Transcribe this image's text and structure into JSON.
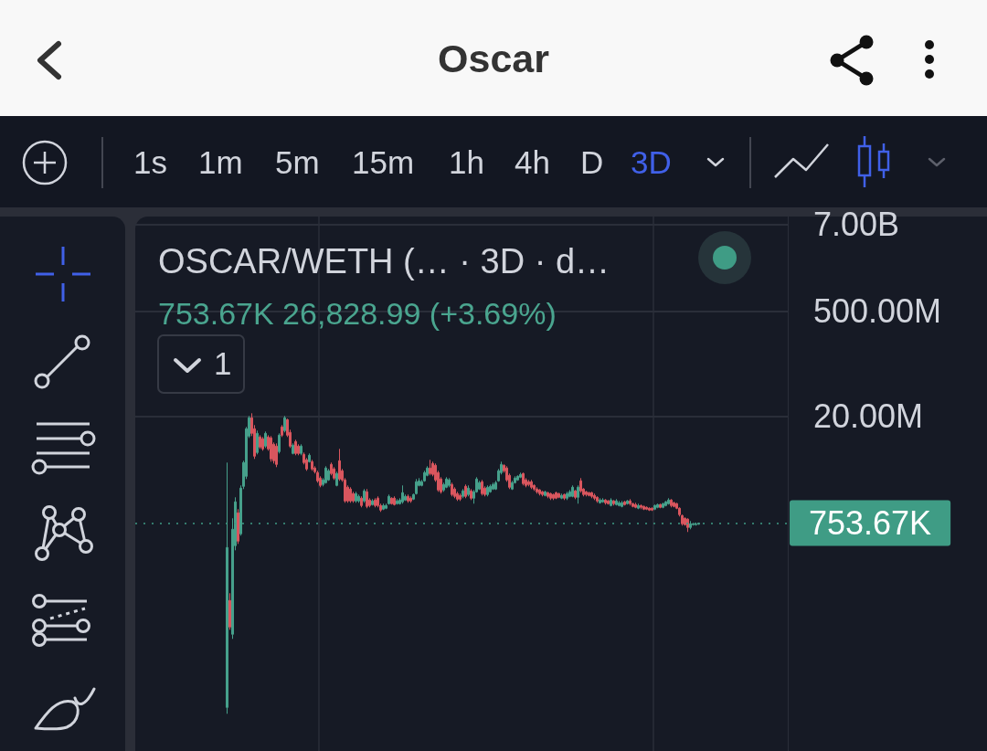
{
  "chart_data": {
    "type": "candlestick",
    "title": "OSCAR/WETH (… · 3D · d…",
    "subtitle": "753.67K 26,828.99 (+3.69%)",
    "annotations": [
      "Oscar",
      "1s",
      "1m",
      "5m",
      "15m",
      "1h",
      "4h",
      "D",
      "3D",
      "1"
    ],
    "categories": [
      null,
      null,
      null,
      null,
      null,
      null,
      null,
      null,
      null,
      null,
      null,
      null,
      null,
      null,
      null,
      null,
      null,
      null,
      null,
      null,
      null,
      null,
      null,
      null,
      null,
      null,
      null,
      null,
      null,
      null,
      null,
      null,
      null,
      null,
      null,
      null,
      null,
      null,
      null,
      null,
      null,
      null,
      null,
      null,
      null,
      null,
      null,
      null,
      null,
      null,
      null,
      null,
      null,
      null,
      null,
      null,
      null,
      null,
      null,
      null,
      null,
      null,
      null,
      null,
      null,
      null,
      null,
      null,
      null,
      null,
      null,
      null,
      null,
      null,
      null,
      null,
      null,
      null,
      null,
      null,
      null,
      null,
      null,
      null,
      null,
      null,
      null,
      null,
      null,
      null,
      null,
      null,
      null,
      null,
      null,
      null,
      null,
      null,
      null,
      null,
      null,
      null,
      null,
      null,
      null,
      null,
      null,
      null,
      null,
      null,
      null,
      null,
      null,
      null,
      null,
      null,
      null,
      null,
      null,
      null,
      null,
      null,
      null,
      null,
      null,
      null,
      null,
      null,
      null,
      null,
      null,
      null,
      null,
      null,
      null,
      null,
      null,
      null,
      null,
      null,
      null,
      null,
      null,
      null,
      null,
      null,
      null,
      null,
      null,
      null,
      null,
      null,
      null,
      null,
      null,
      null,
      null,
      null,
      null,
      null,
      null,
      null,
      null,
      null,
      null,
      null,
      null,
      null,
      null,
      null,
      null,
      null,
      null,
      null,
      null,
      null,
      null,
      null,
      null,
      null,
      null,
      null,
      null,
      null,
      null,
      null,
      null,
      null,
      null,
      null,
      null,
      null,
      null,
      null,
      null,
      null,
      null,
      null,
      null,
      null,
      null,
      null,
      null,
      null,
      null,
      null,
      null,
      null,
      null,
      null,
      null,
      null,
      null,
      null,
      null,
      null,
      null,
      null,
      null,
      null,
      null,
      null,
      null,
      null,
      null,
      null,
      null,
      null,
      null,
      null,
      null,
      null,
      null,
      null,
      null,
      null,
      null,
      null
    ],
    "ohlc": [
      null,
      null,
      null,
      null,
      null,
      null,
      null,
      null,
      null,
      null,
      null,
      null,
      null,
      null,
      null,
      null,
      null,
      null,
      null,
      null,
      null,
      null,
      null,
      null,
      null,
      null,
      null,
      null,
      null,
      null,
      null,
      null,
      null,
      [
        2660,
        4802000.0,
        2190,
        356000
      ],
      [
        70300,
        87900,
        28700,
        31200
      ],
      [
        25000,
        872000,
        21700,
        623000
      ],
      [
        377000,
        1659000.0,
        327000,
        1442000.0
      ],
      [
        1031000.0,
        1153000.0,
        398000,
        433000
      ],
      [
        542000,
        2386000.0,
        512000,
        2194000.0
      ],
      [
        2320000.0,
        5078000.0,
        2134000.0,
        4802000.0
      ],
      [
        3156000.0,
        14300000.0,
        2902000.0,
        13520000.0
      ],
      [
        10810000.0,
        20000000.0,
        10220000.0,
        18910000.0
      ],
      [
        18910000.0,
        21750000.0,
        10810000.0,
        11750000.0
      ],
      [
        13520000.0,
        15120000.0,
        5370000.0,
        5840000.0
      ],
      [
        6532000.0,
        12780000.0,
        6177000.0,
        11750000.0
      ],
      [
        10510000.0,
        11110000.0,
        7306000.0,
        7726000.0
      ],
      [
        9937000.0,
        10510000.0,
        6908000.0,
        7306000.0
      ],
      [
        7945000.0,
        12430000.0,
        7513000.0,
        11750000.0
      ],
      [
        10510000.0,
        11110000.0,
        6908000.0,
        7306000.0
      ],
      [
        10220000.0,
        10810000.0,
        4938000.0,
        5370000.0
      ],
      [
        8403000.0,
        8885000.0,
        4669000.0,
        5078000.0
      ],
      [
        7945000.0,
        8641000.0,
        4175000.0,
        4540000.0
      ],
      [
        6718000.0,
        11750000.0,
        6352000.0,
        11110000.0
      ],
      [
        14300000.0,
        15120000.0,
        10510000.0,
        11110000.0
      ],
      [
        12780000.0,
        20000000.0,
        12090000.0,
        18910000.0
      ],
      [
        17880000.0,
        18390000.0,
        10510000.0,
        11110000.0
      ],
      [
        12090000.0,
        13150000.0,
        7513000.0,
        7945000.0
      ],
      [
        6352000.0,
        8641000.0,
        6177000.0,
        8171000.0
      ],
      [
        9137000.0,
        9663000.0,
        6006000.0,
        6352000.0
      ],
      [
        7945000.0,
        8403000.0,
        6006000.0,
        6352000.0
      ],
      [
        6352000.0,
        8403000.0,
        6006000.0,
        7945000.0
      ],
      [
        6177000.0,
        6532000.0,
        4540000.0,
        4802000.0
      ],
      [
        5222000.0,
        5523000.0,
        3733000.0,
        3948000.0
      ],
      [
        4938000.0,
        6352000.0,
        4802000.0,
        6006000.0
      ],
      [
        4938000.0,
        5222000.0,
        3733000.0,
        3948000.0
      ],
      [
        4060000.0,
        4293000.0,
        3432000.0,
        3630000.0
      ],
      [
        3530000.0,
        3733000.0,
        2595000.0,
        2744000.0
      ],
      [
        2984000.0,
        3156000.0,
        2256000.0,
        2386000.0
      ],
      [
        2454000.0,
        2984000.0,
        2320000.0,
        2822000.0
      ],
      [
        2595000.0,
        4293000.0,
        2523000.0,
        4060000.0
      ],
      [
        2822000.0,
        3948000.0,
        2744000.0,
        3733000.0
      ],
      [
        4540000.0,
        4802000.0,
        3246000.0,
        3432000.0
      ],
      [
        3948000.0,
        4175000.0,
        2822000.0,
        2984000.0
      ],
      [
        2386000.0,
        3630000.0,
        2320000.0,
        3432000.0
      ],
      [
        5078000.0,
        7306000.0,
        2744000.0,
        2902000.0
      ],
      [
        3733000.0,
        3948000.0,
        2668000.0,
        2822000.0
      ],
      [
        2822000.0,
        2984000.0,
        1402000.0,
        1483000.0
      ],
      [
        2256000.0,
        2386000.0,
        1402000.0,
        1483000.0
      ],
      [
        2134000.0,
        2256000.0,
        1402000.0,
        1483000.0
      ],
      [
        1855000.0,
        1962000.0,
        1402000.0,
        1483000.0
      ],
      [
        1483000.0,
        1962000.0,
        1402000.0,
        1855000.0
      ],
      [
        1483000.0,
        1804000.0,
        1402000.0,
        1706000.0
      ],
      [
        1613000.0,
        1706000.0,
        1219000.0,
        1289000.0
      ],
      [
        1483000.0,
        2134000.0,
        1402000.0,
        2017000.0
      ],
      [
        1962000.0,
        2134000.0,
        1186000.0,
        1254000.0
      ],
      [
        1525000.0,
        1613000.0,
        1219000.0,
        1289000.0
      ],
      [
        1326000.0,
        1568000.0,
        1289000.0,
        1483000.0
      ],
      [
        1525000.0,
        1613000.0,
        1219000.0,
        1289000.0
      ],
      [
        1613000.0,
        1706000.0,
        1219000.0,
        1289000.0
      ],
      [
        1289000.0,
        1364000.0,
        1060000.0,
        1121000.0
      ],
      [
        1153000.0,
        1364000.0,
        1121000.0,
        1289000.0
      ],
      [
        1186000.0,
        1364000.0,
        1153000.0,
        1289000.0
      ],
      [
        1364000.0,
        1804000.0,
        1326000.0,
        1706000.0
      ],
      [
        1613000.0,
        1659000.0,
        1326000.0,
        1364000.0
      ],
      [
        1613000.0,
        1706000.0,
        1289000.0,
        1326000.0
      ],
      [
        1364000.0,
        1568000.0,
        1326000.0,
        1483000.0
      ],
      [
        1364000.0,
        1613000.0,
        1326000.0,
        1525000.0
      ],
      [
        1442000.0,
        2386000.0,
        1364000.0,
        1908000.0
      ],
      [
        1525000.0,
        1804000.0,
        1483000.0,
        1706000.0
      ],
      [
        1706000.0,
        1804000.0,
        1402000.0,
        1483000.0
      ],
      [
        1613000.0,
        1706000.0,
        1402000.0,
        1483000.0
      ],
      [
        1568000.0,
        1855000.0,
        1525000.0,
        1804000.0
      ],
      [
        1855000.0,
        2902000.0,
        1804000.0,
        2668000.0
      ],
      [
        2386000.0,
        2984000.0,
        2320000.0,
        2744000.0
      ],
      [
        2386000.0,
        2822000.0,
        2320000.0,
        2668000.0
      ],
      [
        2744000.0,
        3733000.0,
        2668000.0,
        3530000.0
      ],
      [
        3246000.0,
        4293000.0,
        3156000.0,
        4060000.0
      ],
      [
        4060000.0,
        5222000.0,
        3246000.0,
        3432000.0
      ],
      [
        4669000.0,
        4938000.0,
        3156000.0,
        3338000.0
      ],
      [
        4415000.0,
        4669000.0,
        2668000.0,
        2822000.0
      ],
      [
        3530000.0,
        3733000.0,
        1962000.0,
        2075000.0
      ],
      [
        2902000.0,
        3069000.0,
        1855000.0,
        1962000.0
      ],
      [
        2075000.0,
        2595000.0,
        1962000.0,
        2454000.0
      ],
      [
        2256000.0,
        3069000.0,
        2194000.0,
        2902000.0
      ],
      [
        2386000.0,
        2984000.0,
        2256000.0,
        2822000.0
      ],
      [
        2454000.0,
        2595000.0,
        1706000.0,
        1804000.0
      ],
      [
        2134000.0,
        2256000.0,
        1613000.0,
        1706000.0
      ],
      [
        1855000.0,
        1962000.0,
        1483000.0,
        1568000.0
      ],
      [
        1754000.0,
        1855000.0,
        1483000.0,
        1568000.0
      ],
      [
        1706000.0,
        2134000.0,
        1613000.0,
        2017000.0
      ],
      [
        2320000.0,
        2454000.0,
        1613000.0,
        1706000.0
      ],
      [
        1804000.0,
        2386000.0,
        1706000.0,
        2194000.0
      ],
      [
        2017000.0,
        2134000.0,
        1525000.0,
        1613000.0
      ],
      [
        1613000.0,
        2075000.0,
        1364000.0,
        1962000.0
      ],
      [
        1962000.0,
        3069000.0,
        1908000.0,
        2902000.0
      ],
      [
        2134000.0,
        2744000.0,
        2075000.0,
        2595000.0
      ],
      [
        2668000.0,
        2822000.0,
        1754000.0,
        1855000.0
      ],
      [
        2194000.0,
        2320000.0,
        1706000.0,
        1804000.0
      ],
      [
        1804000.0,
        2386000.0,
        1706000.0,
        2256000.0
      ],
      [
        1962000.0,
        2454000.0,
        1908000.0,
        2320000.0
      ],
      [
        2134000.0,
        2595000.0,
        2075000.0,
        2454000.0
      ],
      [
        2134000.0,
        2744000.0,
        2075000.0,
        2595000.0
      ],
      [
        2744000.0,
        3948000.0,
        2668000.0,
        3733000.0
      ],
      [
        3530000.0,
        4938000.0,
        3338000.0,
        4540000.0
      ],
      [
        4415000.0,
        4540000.0,
        3530000.0,
        3733000.0
      ],
      [
        4060000.0,
        4293000.0,
        2668000.0,
        2822000.0
      ],
      [
        3246000.0,
        3432000.0,
        2134000.0,
        2256000.0
      ],
      [
        2134000.0,
        2744000.0,
        2075000.0,
        2595000.0
      ],
      [
        2595000.0,
        3156000.0,
        2523000.0,
        2984000.0
      ],
      [
        2822000.0,
        3246000.0,
        2744000.0,
        3156000.0
      ],
      [
        3069000.0,
        3530000.0,
        2984000.0,
        3338000.0
      ],
      [
        3432000.0,
        3530000.0,
        2386000.0,
        2523000.0
      ],
      [
        2822000.0,
        2984000.0,
        2256000.0,
        2386000.0
      ],
      [
        2668000.0,
        2822000.0,
        2320000.0,
        2454000.0
      ],
      [
        2668000.0,
        2822000.0,
        2134000.0,
        2256000.0
      ],
      [
        2386000.0,
        2454000.0,
        2017000.0,
        2134000.0
      ],
      [
        2134000.0,
        2256000.0,
        1855000.0,
        1962000.0
      ],
      [
        2075000.0,
        2134000.0,
        1754000.0,
        1855000.0
      ],
      [
        1962000.0,
        2017000.0,
        1706000.0,
        1804000.0
      ],
      [
        1754000.0,
        2017000.0,
        1706000.0,
        1962000.0
      ],
      [
        1908000.0,
        1962000.0,
        1613000.0,
        1706000.0
      ],
      [
        1855000.0,
        1908000.0,
        1525000.0,
        1613000.0
      ],
      [
        1804000.0,
        1855000.0,
        1525000.0,
        1613000.0
      ],
      [
        1908000.0,
        1962000.0,
        1568000.0,
        1613000.0
      ],
      [
        1855000.0,
        1908000.0,
        1613000.0,
        1659000.0
      ],
      [
        1613000.0,
        1855000.0,
        1568000.0,
        1754000.0
      ],
      [
        1804000.0,
        1855000.0,
        1525000.0,
        1613000.0
      ],
      [
        1613000.0,
        1962000.0,
        1525000.0,
        1855000.0
      ],
      [
        1706000.0,
        2075000.0,
        1659000.0,
        1962000.0
      ],
      [
        1706000.0,
        2386000.0,
        1659000.0,
        2256000.0
      ],
      [
        2017000.0,
        2075000.0,
        1568000.0,
        1659000.0
      ],
      [
        1659000.0,
        2386000.0,
        1364000.0,
        2256000.0
      ],
      [
        2744000.0,
        2984000.0,
        1908000.0,
        2017000.0
      ],
      [
        2134000.0,
        2194000.0,
        1706000.0,
        1804000.0
      ],
      [
        1962000.0,
        2017000.0,
        1706000.0,
        1804000.0
      ],
      [
        1908000.0,
        1962000.0,
        1706000.0,
        1754000.0
      ],
      [
        1908000.0,
        1962000.0,
        1613000.0,
        1706000.0
      ],
      [
        1754000.0,
        1855000.0,
        1525000.0,
        1613000.0
      ],
      [
        1659000.0,
        1706000.0,
        1402000.0,
        1483000.0
      ],
      [
        1402000.0,
        1613000.0,
        1364000.0,
        1525000.0
      ],
      [
        1442000.0,
        1613000.0,
        1402000.0,
        1525000.0
      ],
      [
        1525000.0,
        1568000.0,
        1326000.0,
        1402000.0
      ],
      [
        1483000.0,
        1525000.0,
        1326000.0,
        1364000.0
      ],
      [
        1289000.0,
        1613000.0,
        1254000.0,
        1525000.0
      ],
      [
        1483000.0,
        1525000.0,
        1289000.0,
        1364000.0
      ],
      [
        1326000.0,
        1568000.0,
        1289000.0,
        1483000.0
      ],
      [
        1289000.0,
        1483000.0,
        1254000.0,
        1402000.0
      ],
      [
        1254000.0,
        1483000.0,
        1219000.0,
        1402000.0
      ],
      [
        1442000.0,
        1483000.0,
        1289000.0,
        1326000.0
      ],
      [
        1364000.0,
        1525000.0,
        1326000.0,
        1483000.0
      ],
      [
        1483000.0,
        1568000.0,
        1289000.0,
        1364000.0
      ],
      [
        1364000.0,
        1402000.0,
        1219000.0,
        1254000.0
      ],
      [
        1326000.0,
        1402000.0,
        1186000.0,
        1219000.0
      ],
      [
        1186000.0,
        1364000.0,
        1153000.0,
        1289000.0
      ],
      [
        1289000.0,
        1326000.0,
        1153000.0,
        1219000.0
      ],
      [
        1254000.0,
        1289000.0,
        1121000.0,
        1153000.0
      ],
      [
        1219000.0,
        1254000.0,
        1121000.0,
        1153000.0
      ],
      [
        1186000.0,
        1219000.0,
        1090000.0,
        1121000.0
      ],
      [
        1186000.0,
        1219000.0,
        1090000.0,
        1121000.0
      ],
      [
        1153000.0,
        1326000.0,
        1121000.0,
        1289000.0
      ],
      [
        1219000.0,
        1364000.0,
        1186000.0,
        1326000.0
      ],
      [
        1326000.0,
        1364000.0,
        1186000.0,
        1219000.0
      ],
      [
        1219000.0,
        1402000.0,
        1186000.0,
        1364000.0
      ],
      [
        1289000.0,
        1483000.0,
        1254000.0,
        1442000.0
      ],
      [
        1364000.0,
        1613000.0,
        1326000.0,
        1525000.0
      ],
      [
        1525000.0,
        1568000.0,
        1219000.0,
        1289000.0
      ],
      [
        1402000.0,
        1442000.0,
        1219000.0,
        1254000.0
      ],
      [
        1364000.0,
        1402000.0,
        1153000.0,
        1186000.0
      ],
      [
        1186000.0,
        1219000.0,
        922000,
        975000
      ],
      [
        948000,
        975000,
        697000,
        737000
      ],
      [
        872000,
        896000,
        697000,
        717000
      ],
      [
        848000,
        872000,
        573000,
        659000
      ],
      [
        659000,
        801000,
        623000,
        737000
      ],
      [
        717000,
        758000,
        697000,
        737000
      ],
      [
        717000,
        758000,
        697000,
        727000
      ],
      [
        727000,
        758000,
        717000,
        753670
      ],
      null,
      null,
      null,
      null,
      null,
      null,
      null,
      null,
      null,
      null,
      null,
      null,
      null,
      null,
      null,
      null,
      null,
      null,
      null,
      null,
      null,
      null,
      null,
      null,
      null,
      null,
      null,
      null,
      null,
      null,
      null,
      null
    ],
    "colors": [
      null,
      null,
      null,
      null,
      null,
      null,
      null,
      null,
      null,
      null,
      null,
      null,
      null,
      null,
      null,
      null,
      null,
      null,
      null,
      null,
      null,
      null,
      null,
      null,
      null,
      null,
      null,
      null,
      null,
      null,
      null,
      null,
      null,
      "#46a08b",
      "#d9565e",
      "#46a08b",
      "#46a08b",
      "#d9565e",
      "#46a08b",
      "#46a08b",
      "#46a08b",
      "#46a08b",
      "#d9565e",
      "#d9565e",
      "#46a08b",
      "#d9565e",
      "#d9565e",
      "#46a08b",
      "#d9565e",
      "#d9565e",
      "#d9565e",
      "#d9565e",
      "#46a08b",
      "#d9565e",
      "#46a08b",
      "#d9565e",
      "#d9565e",
      "#46a08b",
      "#d9565e",
      "#d9565e",
      "#46a08b",
      "#d9565e",
      "#d9565e",
      "#46a08b",
      "#d9565e",
      "#d9565e",
      "#d9565e",
      "#d9565e",
      "#46a08b",
      "#46a08b",
      "#46a08b",
      "#d9565e",
      "#d9565e",
      "#46a08b",
      "#d9565e",
      "#d9565e",
      "#d9565e",
      "#d9565e",
      "#d9565e",
      "#d9565e",
      "#46a08b",
      "#46a08b",
      "#d9565e",
      "#46a08b",
      "#d9565e",
      "#d9565e",
      "#46a08b",
      "#d9565e",
      "#d9565e",
      "#d9565e",
      "#46a08b",
      "#46a08b",
      "#46a08b",
      "#d9565e",
      "#d9565e",
      "#46a08b",
      "#46a08b",
      "#46a08b",
      "#46a08b",
      "#d9565e",
      "#d9565e",
      "#46a08b",
      "#46a08b",
      "#46a08b",
      "#46a08b",
      "#46a08b",
      "#46a08b",
      "#d9565e",
      "#d9565e",
      "#d9565e",
      "#d9565e",
      "#d9565e",
      "#46a08b",
      "#46a08b",
      "#46a08b",
      "#d9565e",
      "#d9565e",
      "#d9565e",
      "#d9565e",
      "#46a08b",
      "#d9565e",
      "#46a08b",
      "#d9565e",
      "#46a08b",
      "#46a08b",
      "#46a08b",
      "#d9565e",
      "#d9565e",
      "#46a08b",
      "#46a08b",
      "#46a08b",
      "#46a08b",
      "#46a08b",
      "#46a08b",
      "#d9565e",
      "#d9565e",
      "#d9565e",
      "#46a08b",
      "#46a08b",
      "#46a08b",
      "#46a08b",
      "#d9565e",
      "#d9565e",
      "#d9565e",
      "#d9565e",
      "#d9565e",
      "#d9565e",
      "#d9565e",
      "#d9565e",
      "#46a08b",
      "#d9565e",
      "#d9565e",
      "#d9565e",
      "#d9565e",
      "#d9565e",
      "#46a08b",
      "#d9565e",
      "#46a08b",
      "#46a08b",
      "#46a08b",
      "#d9565e",
      "#46a08b",
      "#d9565e",
      "#d9565e",
      "#d9565e",
      "#d9565e",
      "#d9565e",
      "#d9565e",
      "#d9565e",
      "#46a08b",
      "#46a08b",
      "#d9565e",
      "#d9565e",
      "#46a08b",
      "#d9565e",
      "#46a08b",
      "#46a08b",
      "#46a08b",
      "#d9565e",
      "#46a08b",
      "#d9565e",
      "#d9565e",
      "#d9565e",
      "#46a08b",
      "#d9565e",
      "#d9565e",
      "#d9565e",
      "#d9565e",
      "#d9565e",
      "#46a08b",
      "#46a08b",
      "#d9565e",
      "#46a08b",
      "#46a08b",
      "#46a08b",
      "#d9565e",
      "#d9565e",
      "#d9565e",
      "#d9565e",
      "#d9565e",
      "#d9565e",
      "#d9565e",
      "#46a08b",
      "#46a08b",
      "#46a08b",
      "#46a08b",
      null,
      null,
      null,
      null,
      null,
      null,
      null,
      null,
      null,
      null,
      null,
      null,
      null,
      null,
      null,
      null,
      null,
      null,
      null,
      null,
      null,
      null,
      null,
      null,
      null,
      null,
      null,
      null,
      null,
      null,
      null,
      null
    ],
    "ylim": [
      700,
      9000000000.0
    ],
    "yticks": [
      {
        "value": 20000000.0,
        "label": "20.00M"
      },
      {
        "value": 500000000.0,
        "label": "500.00M"
      },
      {
        "value": 7000000000.0,
        "label": "7.00B"
      }
    ],
    "log": "y",
    "grid": "y",
    "tick_labels": "y",
    "ref_lines": [
      {
        "axis": "y",
        "value": 753670,
        "label": "753.67K",
        "color": "#3f9c85",
        "line_style": "dotted"
      }
    ]
  }
}
